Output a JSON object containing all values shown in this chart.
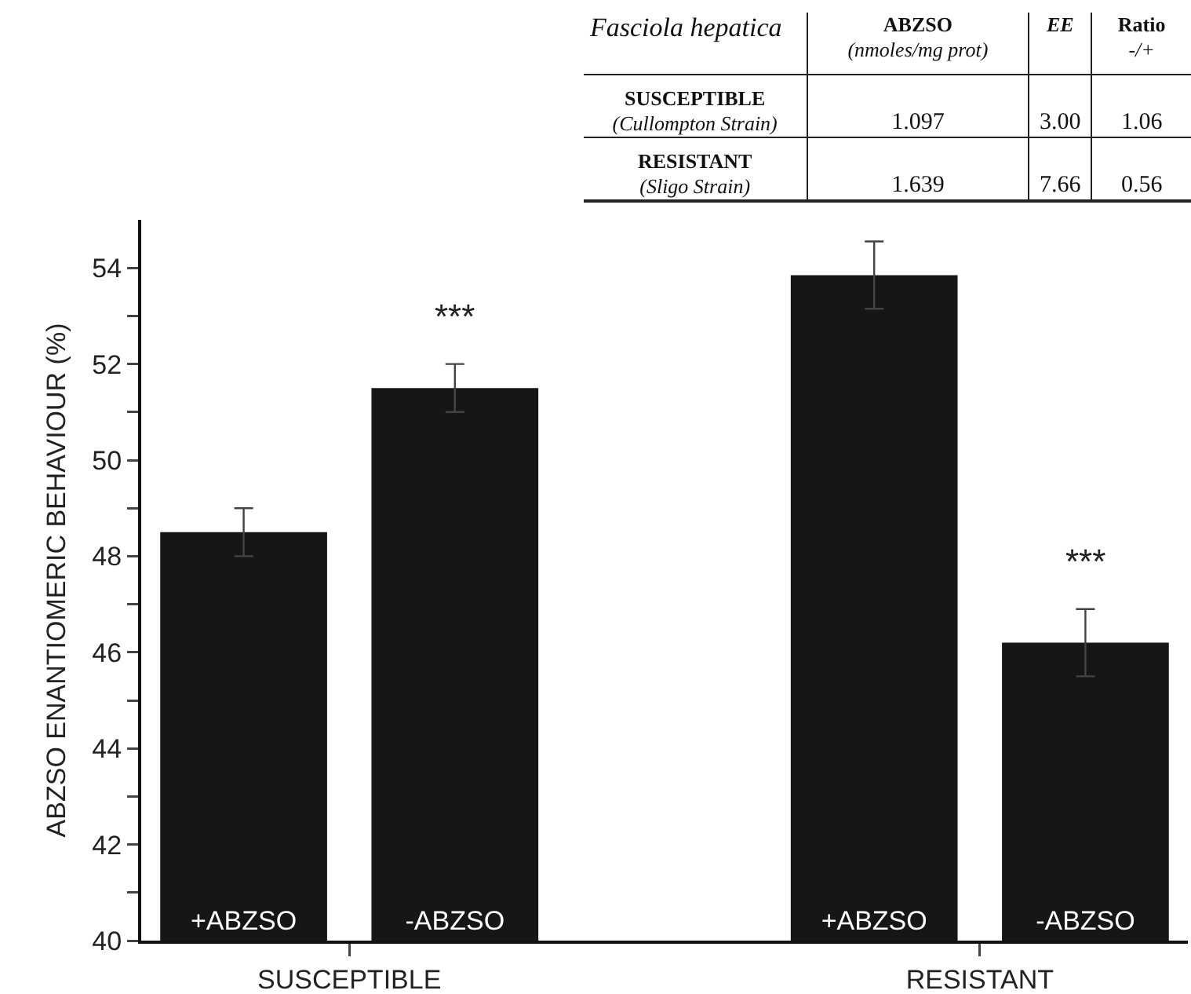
{
  "chart_data": [
    {
      "type": "bar",
      "ylabel": "ABZSO ENANTIOMERIC BEHAVIOUR (%)",
      "categories": [
        "SUSCEPTIBLE",
        "RESISTANT"
      ],
      "series": [
        {
          "name": "+ABZSO",
          "color": "#161616",
          "values": [
            48.5,
            53.85
          ],
          "errors": [
            0.5,
            0.7
          ]
        },
        {
          "name": "-ABZSO",
          "color": "#161616",
          "values": [
            51.5,
            46.2
          ],
          "errors": [
            0.5,
            0.7
          ]
        }
      ],
      "ylim": [
        40,
        55
      ],
      "yticks": [
        40,
        {
          "value": 41,
          "label": null
        },
        42,
        {
          "value": 43,
          "label": null
        },
        44,
        {
          "value": 45,
          "label": null
        },
        46,
        {
          "value": 47,
          "label": null
        },
        48,
        {
          "value": 49,
          "label": null
        },
        50,
        {
          "value": 51,
          "label": null
        },
        52,
        {
          "value": 53,
          "label": null
        },
        54
      ],
      "annotations": [
        "***",
        "***"
      ],
      "grid": false,
      "legend": false
    },
    {
      "type": "other",
      "annotations": [
        "Fasciola hepatica",
        "ABZSO\n(nmoles/mg prot)",
        "EE",
        "Ratio\n-/+",
        "SUSCEPTIBLE\n(Cullompton Strain)",
        "1.097",
        "3.00",
        "1.06",
        "RESISTANT\n(Sligo Strain)",
        "1.639",
        "7.66",
        "0.56"
      ]
    }
  ]
}
